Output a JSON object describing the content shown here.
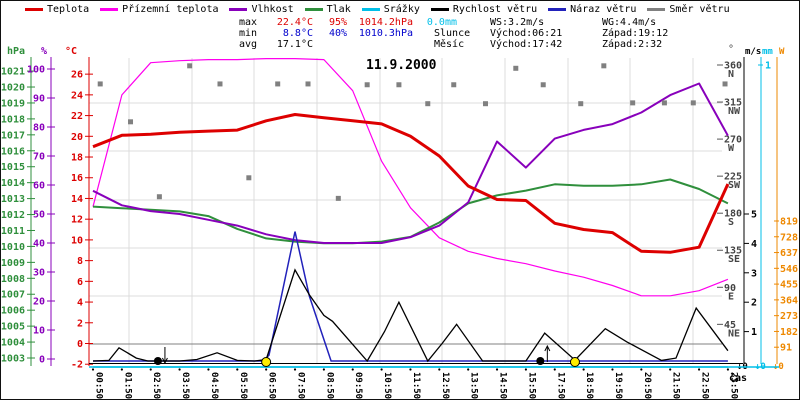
{
  "legend": {
    "items": [
      {
        "label": "Teplota",
        "color": "#dd0000"
      },
      {
        "label": "Přízemní teplota",
        "color": "#ff00ee"
      },
      {
        "label": "Vlhkost",
        "color": "#8800bb"
      },
      {
        "label": "Tlak",
        "color": "#2f8f3c"
      },
      {
        "label": "Srážky",
        "color": "#00bfe8"
      },
      {
        "label": "Rychlost větru",
        "color": "#000000"
      },
      {
        "label": "Náraz větru",
        "color": "#2222bb"
      },
      {
        "label": "Směr větru",
        "color": "#808080"
      }
    ]
  },
  "stats": {
    "left": {
      "rows": [
        {
          "label": "max",
          "cells": [
            {
              "text": "22.4°C",
              "color": "#dd0000"
            },
            {
              "text": "95%",
              "color": "#dd0000"
            },
            {
              "text": "1014.2hPa",
              "color": "#dd0000"
            },
            {
              "text": "0.0mm",
              "color": "#00bfe8"
            }
          ]
        },
        {
          "label": "min",
          "cells": [
            {
              "text": "8.8°C",
              "color": "#0000cc"
            },
            {
              "text": "40%",
              "color": "#0000cc"
            },
            {
              "text": "1010.3hPa",
              "color": "#0000cc"
            }
          ]
        },
        {
          "label": "avg",
          "cells": [
            {
              "text": "17.1°C",
              "color": "#000000"
            }
          ]
        }
      ]
    },
    "right": {
      "wind": {
        "ws": "WS:3.2m/s",
        "wg": "WG:4.4m/s"
      },
      "sun": {
        "label": "Slunce",
        "rise": "Východ:06:21",
        "set": "Západ:19:12"
      },
      "moon": {
        "label": "Měsíc",
        "rise": "Východ:17:42",
        "set": "Západ:2:32"
      }
    }
  },
  "chart_data": {
    "type": "line",
    "title": "11.9.2000",
    "xlabel": "čas",
    "x_labels": [
      "00:50",
      "01:50",
      "02:50",
      "03:50",
      "04:50",
      "05:50",
      "06:50",
      "07:50",
      "08:50",
      "09:50",
      "10:50",
      "11:50",
      "12:50",
      "13:50",
      "14:50",
      "15:50",
      "17:50",
      "18:50",
      "19:50",
      "20:50",
      "21:50",
      "22:50",
      "23:50"
    ],
    "axes": {
      "temp": {
        "unit": "°C",
        "color": "#dd0000",
        "ticks": [
          26,
          24,
          22,
          20,
          18,
          16,
          14,
          12,
          10,
          8,
          6,
          4,
          2,
          0,
          -2
        ]
      },
      "hum": {
        "unit": "%",
        "color": "#8800bb",
        "ticks": [
          100,
          90,
          80,
          70,
          60,
          50,
          40,
          30,
          20,
          10,
          0
        ]
      },
      "pres": {
        "unit": "hPa",
        "color": "#2f8f3c",
        "ticks": [
          1021,
          1020,
          1019,
          1018,
          1017,
          1016,
          1015,
          1014,
          1013,
          1012,
          1011,
          1010,
          1009,
          1008,
          1007,
          1006,
          1005,
          1004,
          1003
        ]
      },
      "dir": {
        "unit": "°",
        "color": "#444444",
        "ticks": [
          [
            360,
            "N"
          ],
          [
            315,
            "NW"
          ],
          [
            270,
            "W"
          ],
          [
            225,
            "SW"
          ],
          [
            180,
            "S"
          ],
          [
            135,
            "SE"
          ],
          [
            90,
            "E"
          ],
          [
            45,
            "NE"
          ]
        ]
      },
      "ms": {
        "unit": "m/s",
        "color": "#000000",
        "ticks": [
          5,
          4,
          3,
          2,
          1
        ],
        "zero_label": "↓0"
      },
      "mm": {
        "unit": "mm",
        "color": "#00bfe8",
        "ticks": [
          1
        ],
        "zero_label": "↓0"
      },
      "watt": {
        "unit": "W",
        "color": "#ee8800",
        "ticks": [
          819,
          728,
          637,
          546,
          455,
          364,
          273,
          182,
          91
        ],
        "zero_label": "↓0"
      }
    },
    "series": [
      {
        "key": "prizemni",
        "name": "Přízemní teplota",
        "color": "#ff00ee",
        "axis": "temp",
        "width": 1.2,
        "values": [
          13.2,
          24.0,
          27.1,
          27.3,
          27.4,
          27.4,
          27.5,
          27.5,
          27.4,
          24.4,
          17.6,
          13.1,
          10.2,
          8.9,
          8.2,
          7.7,
          7.0,
          6.4,
          5.6,
          4.6,
          4.6,
          5.1,
          6.2
        ]
      },
      {
        "key": "tlak",
        "name": "Tlak",
        "color": "#2f8f3c",
        "axis": "pres",
        "width": 2,
        "values": [
          1012.5,
          1012.4,
          1012.3,
          1012.2,
          1011.9,
          1011.1,
          1010.5,
          1010.3,
          1010.2,
          1010.2,
          1010.3,
          1010.6,
          1011.5,
          1012.7,
          1013.2,
          1013.5,
          1013.9,
          1013.8,
          1013.8,
          1013.9,
          1014.2,
          1013.6,
          1012.7
        ]
      },
      {
        "key": "vlhkost",
        "name": "Vlhkost",
        "color": "#8800bb",
        "axis": "hum",
        "width": 2,
        "values": [
          58,
          53,
          51,
          50,
          48,
          46,
          43,
          41,
          40,
          40,
          40,
          42,
          46,
          54,
          75,
          66,
          76,
          79,
          81,
          85,
          91,
          95,
          77
        ]
      },
      {
        "key": "teplota",
        "name": "Teplota",
        "color": "#dd0000",
        "axis": "temp",
        "width": 3,
        "values": [
          19.0,
          20.1,
          20.2,
          20.4,
          20.5,
          20.6,
          21.5,
          22.1,
          21.8,
          21.5,
          21.2,
          20.0,
          18.1,
          15.2,
          13.9,
          13.8,
          11.6,
          11.0,
          10.7,
          8.9,
          8.8,
          9.3,
          15.4
        ]
      },
      {
        "key": "srazky",
        "name": "Srážky",
        "color": "#00bfe8",
        "axis": "mm",
        "width": 1.5,
        "values": [
          0,
          0,
          0,
          0,
          0,
          0,
          0,
          0,
          0,
          0,
          0,
          0,
          0,
          0,
          0,
          0,
          0,
          0,
          0,
          0,
          0,
          0,
          0
        ]
      }
    ],
    "wind_speed": {
      "name": "Rychlost větru",
      "color": "#000000",
      "unit": "m/s",
      "points": [
        [
          0,
          0
        ],
        [
          0.55,
          0.02
        ],
        [
          0.9,
          0.45
        ],
        [
          1.5,
          0.1
        ],
        [
          1.9,
          0
        ],
        [
          3.0,
          0
        ],
        [
          3.6,
          0.05
        ],
        [
          4.3,
          0.28
        ],
        [
          5.0,
          0.02
        ],
        [
          5.6,
          0
        ],
        [
          6.0,
          0.05
        ],
        [
          7.0,
          3.1
        ],
        [
          7.5,
          2.25
        ],
        [
          8.0,
          1.55
        ],
        [
          8.3,
          1.35
        ],
        [
          9.5,
          0
        ],
        [
          10.1,
          1.0
        ],
        [
          10.6,
          2.0
        ],
        [
          11.6,
          0
        ],
        [
          12.1,
          0.6
        ],
        [
          12.6,
          1.25
        ],
        [
          13.5,
          0
        ],
        [
          15.0,
          0
        ],
        [
          15.65,
          0.95
        ],
        [
          16.7,
          0.03
        ],
        [
          17.75,
          1.1
        ],
        [
          18.5,
          0.65
        ],
        [
          19.7,
          0.02
        ],
        [
          20.2,
          0.1
        ],
        [
          20.9,
          1.8
        ],
        [
          22,
          0.35
        ]
      ]
    },
    "wind_gust": {
      "name": "Náraz větru",
      "color": "#2222bb",
      "unit": "m/s",
      "points": [
        [
          0,
          0
        ],
        [
          5.9,
          0
        ],
        [
          6.1,
          0.2
        ],
        [
          7.0,
          4.4
        ],
        [
          7.5,
          2.2
        ],
        [
          8.25,
          0
        ],
        [
          22,
          0
        ]
      ]
    },
    "wind_direction": {
      "name": "Směr větru",
      "color": "#808080",
      "unit": "°",
      "points": [
        [
          0.25,
          337
        ],
        [
          1.3,
          291
        ],
        [
          2.3,
          200
        ],
        [
          3.35,
          359
        ],
        [
          4.4,
          337
        ],
        [
          5.4,
          223
        ],
        [
          6.4,
          337
        ],
        [
          7.45,
          337
        ],
        [
          8.5,
          198
        ],
        [
          9.5,
          336
        ],
        [
          10.6,
          336
        ],
        [
          11.6,
          313
        ],
        [
          12.5,
          336
        ],
        [
          13.6,
          313
        ],
        [
          14.65,
          356
        ],
        [
          15.6,
          336
        ],
        [
          16.9,
          313
        ],
        [
          17.7,
          359
        ],
        [
          18.7,
          314
        ],
        [
          19.8,
          314
        ],
        [
          20.8,
          314
        ],
        [
          21.9,
          337
        ]
      ]
    },
    "markers": [
      {
        "type": "moon-set",
        "t": 2.25
      },
      {
        "type": "sun-rise",
        "t": 6.0
      },
      {
        "type": "moon-rise",
        "t": 15.5
      },
      {
        "type": "sun-set",
        "t": 16.7
      }
    ]
  }
}
